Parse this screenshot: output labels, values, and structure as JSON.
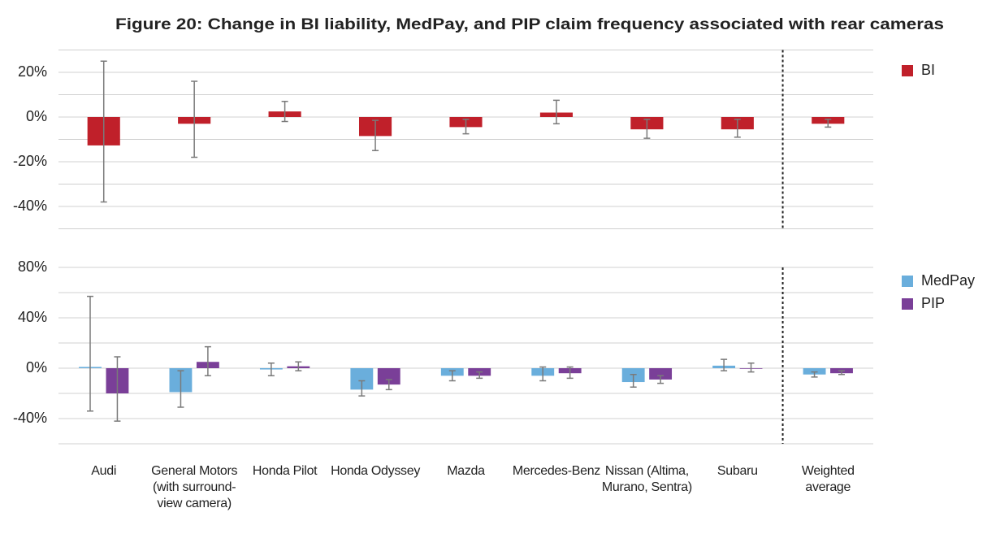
{
  "chart_data": [
    {
      "type": "bar",
      "title": "Figure 20: Change in BI liability, MedPay, and PIP claim frequency associated with rear cameras",
      "series": [
        {
          "name": "BI",
          "color": "#c0202a",
          "values": [
            -12.7,
            -3,
            2.5,
            -8.5,
            -4.5,
            2,
            -5.5,
            -5.5,
            -3
          ],
          "lower": [
            -38,
            -18,
            -2,
            -15,
            -7.5,
            -3,
            -9.5,
            -9,
            -4.5
          ],
          "upper": [
            25,
            16,
            7,
            -1.5,
            -1,
            7.5,
            -1,
            -1,
            -1
          ]
        }
      ],
      "ylim": [
        -50,
        30
      ],
      "yticks": [
        {
          "value": -40,
          "label": "-40%"
        },
        {
          "value": -20,
          "label": "-20%"
        },
        {
          "value": 0,
          "label": "0%"
        },
        {
          "value": 20,
          "label": "20%"
        }
      ],
      "minor_yticks": [
        -50,
        -30,
        -10,
        10,
        30
      ],
      "grid": true
    },
    {
      "type": "bar",
      "categories": [
        "Audi",
        "General Motors (with surround-view camera)",
        "Honda Pilot",
        "Honda Odyssey",
        "Mazda",
        "Mercedes-Benz",
        "Nissan (Altima, Murano, Sentra)",
        "Subaru",
        "Weighted average"
      ],
      "series": [
        {
          "name": "MedPay",
          "color": "#6aaedc",
          "values": [
            1,
            -19,
            -1,
            -17,
            -6,
            -6,
            -11,
            2,
            -5
          ],
          "lower": [
            -34,
            -31,
            -6,
            -22,
            -10,
            -10,
            -15,
            -2,
            -7
          ],
          "upper": [
            57,
            -2,
            4,
            -10,
            -2,
            1,
            -5,
            7,
            -3
          ]
        },
        {
          "name": "PIP",
          "color": "#7a3f98",
          "values": [
            -20,
            5,
            1.5,
            -13,
            -6,
            -4,
            -9,
            -0.5,
            -4
          ],
          "lower": [
            -42,
            -6,
            -2,
            -17,
            -8,
            -8,
            -12,
            -3,
            -5
          ],
          "upper": [
            9,
            17,
            5,
            -9,
            -3,
            1,
            -6,
            4,
            -2
          ]
        }
      ],
      "ylim": [
        -60,
        80
      ],
      "yticks": [
        {
          "value": -40,
          "label": "-40%"
        },
        {
          "value": 0,
          "label": "0%"
        },
        {
          "value": 40,
          "label": "40%"
        },
        {
          "value": 80,
          "label": "80%"
        }
      ],
      "minor_yticks": [
        -60,
        -20,
        20,
        60
      ],
      "grid": true
    }
  ]
}
